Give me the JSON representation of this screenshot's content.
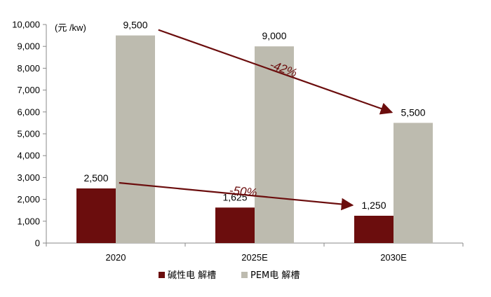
{
  "chart_data": {
    "type": "bar",
    "unit_label": "(元 /kw)",
    "categories": [
      "2020",
      "2025E",
      "2030E"
    ],
    "series": [
      {
        "name": "碱性电 解槽",
        "color": "#6b0d0d",
        "values": [
          2500,
          1625,
          1250
        ],
        "labels": [
          "2,500",
          "1,625",
          "1,250"
        ]
      },
      {
        "name": "PEM电 解槽",
        "color": "#bdbbaf",
        "values": [
          9500,
          9000,
          5500
        ],
        "labels": [
          "9,500",
          "9,000",
          "5,500"
        ]
      }
    ],
    "ylim": [
      0,
      10000
    ],
    "y_ticks": [
      0,
      1000,
      2000,
      3000,
      4000,
      5000,
      6000,
      7000,
      8000,
      9000,
      10000
    ],
    "y_tick_labels": [
      "0",
      "1,000",
      "2,000",
      "3,000",
      "4,000",
      "5,000",
      "6,000",
      "7,000",
      "8,000",
      "9,000",
      "10,000"
    ],
    "grid": false,
    "legend_position": "bottom",
    "annotations": [
      {
        "text": "-42%",
        "series_index": 1,
        "from_category": 0,
        "to_category": 2,
        "color": "#6b0d0d"
      },
      {
        "text": "-50%",
        "series_index": 0,
        "from_category": 0,
        "to_category": 2,
        "color": "#6b0d0d"
      }
    ]
  }
}
